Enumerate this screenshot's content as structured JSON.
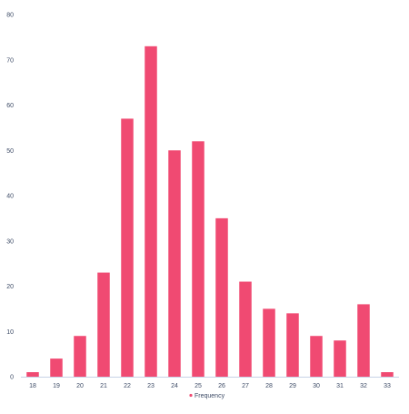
{
  "chart_data": {
    "type": "bar",
    "categories": [
      "18",
      "19",
      "20",
      "21",
      "22",
      "23",
      "24",
      "25",
      "26",
      "27",
      "28",
      "29",
      "30",
      "31",
      "32",
      "33"
    ],
    "series": [
      {
        "name": "Frequency",
        "values": [
          1,
          4,
          9,
          23,
          57,
          73,
          50,
          52,
          35,
          21,
          15,
          14,
          9,
          8,
          16,
          1
        ],
        "color": "#f04a72"
      }
    ],
    "ylim": [
      0,
      80
    ],
    "yticks": [
      0,
      10,
      20,
      30,
      40,
      50,
      60,
      70,
      80
    ],
    "grid": false,
    "legend_position": "bottom-center"
  }
}
